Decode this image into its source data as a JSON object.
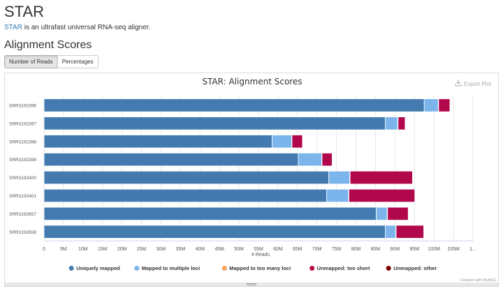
{
  "module": {
    "title": "STAR",
    "link_text": "STAR",
    "description": " is an ultrafast universal RNA-seq aligner."
  },
  "section": {
    "title": "Alignment Scores"
  },
  "toggle": {
    "buttons": [
      {
        "label": "Number of Reads",
        "active": true
      },
      {
        "label": "Percentages",
        "active": false
      }
    ]
  },
  "plot": {
    "export_label": "Export Plot",
    "credit": "Created with MultiQC"
  },
  "colors": {
    "uniquely_mapped": "#437bb1",
    "multiple_loci": "#7cb5ec",
    "too_many_loci": "#f7a35c",
    "unmapped_too_short": "#b1084c",
    "unmapped_other": "#7f0000"
  },
  "chart_data": {
    "type": "bar",
    "orientation": "horizontal",
    "stacked": true,
    "title": "STAR: Alignment Scores",
    "xlabel": "# Reads",
    "ylabel": "",
    "xlim": [
      0,
      105
    ],
    "x_unit": "M",
    "x_ticks": [
      "0",
      "5M",
      "10M",
      "15M",
      "20M",
      "25M",
      "30M",
      "35M",
      "40M",
      "45M",
      "50M",
      "55M",
      "60M",
      "65M",
      "70M",
      "75M",
      "80M",
      "85M",
      "90M",
      "95M",
      "100M",
      "105M",
      "1..."
    ],
    "grid": true,
    "legend_position": "bottom",
    "categories": [
      "SRR3192396",
      "SRR3192397",
      "SRR3192398",
      "SRR3192399",
      "SRR3192400",
      "SRR3192401",
      "SRR3192657",
      "SRR3192658"
    ],
    "series": [
      {
        "name": "Uniquely mapped",
        "color": "#437bb1",
        "values": [
          97.5,
          87.5,
          58.5,
          65.2,
          73.0,
          72.5,
          85.2,
          87.5
        ]
      },
      {
        "name": "Mapped to multiple loci",
        "color": "#7cb5ec",
        "values": [
          3.6,
          3.2,
          5.0,
          6.0,
          5.4,
          5.6,
          2.8,
          2.7
        ]
      },
      {
        "name": "Mapped to too many loci",
        "color": "#f7a35c",
        "values": [
          0.1,
          0.1,
          0.1,
          0.1,
          0.1,
          0.1,
          0.1,
          0.1
        ]
      },
      {
        "name": "Unmapped: too short",
        "color": "#b1084c",
        "values": [
          2.9,
          1.8,
          2.7,
          2.6,
          16.0,
          16.9,
          5.3,
          7.1
        ]
      },
      {
        "name": "Unmapped: other",
        "color": "#7f0000",
        "values": [
          0.1,
          0.1,
          0.1,
          0.1,
          0.1,
          0.1,
          0.1,
          0.1
        ]
      }
    ]
  }
}
